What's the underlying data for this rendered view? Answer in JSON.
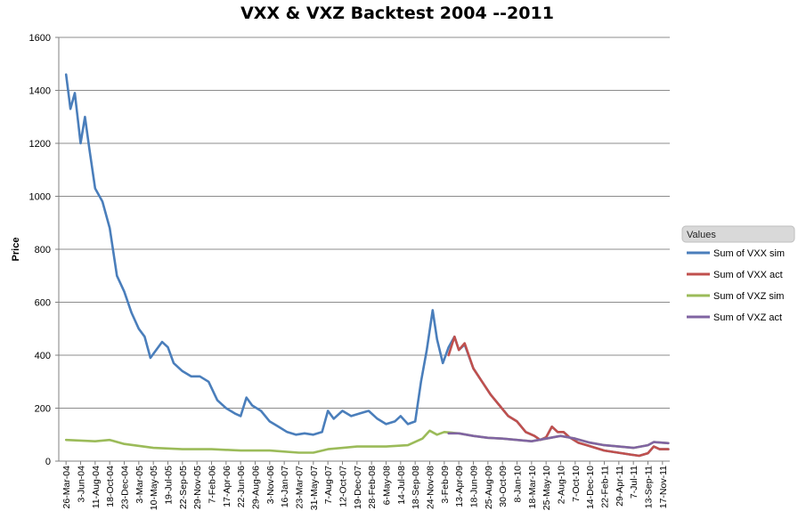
{
  "chart_data": {
    "type": "line",
    "title": "VXX & VXZ Backtest 2004 --2011",
    "xlabel": "",
    "ylabel": "Price",
    "ylim": [
      0,
      1600
    ],
    "yticks": [
      0,
      200,
      400,
      600,
      800,
      1000,
      1200,
      1400,
      1600
    ],
    "grid": true,
    "legend": {
      "title": "Values",
      "placement": "right"
    },
    "x_tick_labels": [
      "26-Mar-04",
      "3-Jun-04",
      "11-Aug-04",
      "18-Oct-04",
      "23-Dec-04",
      "3-Mar-05",
      "10-May-05",
      "19-Jul-05",
      "22-Sep-05",
      "29-Nov-05",
      "7-Feb-06",
      "17-Apr-06",
      "22-Jun-06",
      "29-Aug-06",
      "3-Nov-06",
      "16-Jan-07",
      "23-Mar-07",
      "31-May-07",
      "7-Aug-07",
      "12-Oct-07",
      "19-Dec-07",
      "28-Feb-08",
      "6-May-08",
      "14-Jul-08",
      "18-Sep-08",
      "24-Nov-08",
      "3-Feb-09",
      "13-Apr-09",
      "18-Jun-09",
      "25-Aug-09",
      "30-Oct-09",
      "8-Jan-10",
      "18-Mar-10",
      "25-May-10",
      "2-Aug-10",
      "7-Oct-10",
      "14-Dec-10",
      "22-Feb-11",
      "29-Apr-11",
      "7-Jul-11",
      "13-Sep-11",
      "17-Nov-11"
    ],
    "series": [
      {
        "name": "Sum of VXX sim",
        "color": "#4a7ebb",
        "points": [
          [
            0,
            1460
          ],
          [
            0.3,
            1330
          ],
          [
            0.6,
            1390
          ],
          [
            1.0,
            1200
          ],
          [
            1.3,
            1300
          ],
          [
            1.6,
            1180
          ],
          [
            2.0,
            1030
          ],
          [
            2.5,
            980
          ],
          [
            3.0,
            880
          ],
          [
            3.5,
            700
          ],
          [
            4.0,
            640
          ],
          [
            4.5,
            560
          ],
          [
            5.0,
            500
          ],
          [
            5.4,
            470
          ],
          [
            5.8,
            390
          ],
          [
            6.2,
            420
          ],
          [
            6.6,
            450
          ],
          [
            7.0,
            430
          ],
          [
            7.4,
            370
          ],
          [
            8.0,
            340
          ],
          [
            8.6,
            320
          ],
          [
            9.2,
            320
          ],
          [
            9.8,
            300
          ],
          [
            10.4,
            230
          ],
          [
            11.0,
            200
          ],
          [
            11.6,
            180
          ],
          [
            12.0,
            170
          ],
          [
            12.4,
            240
          ],
          [
            12.8,
            210
          ],
          [
            13.4,
            190
          ],
          [
            14.0,
            150
          ],
          [
            14.6,
            130
          ],
          [
            15.2,
            110
          ],
          [
            15.8,
            100
          ],
          [
            16.4,
            105
          ],
          [
            17.0,
            100
          ],
          [
            17.6,
            110
          ],
          [
            18.0,
            190
          ],
          [
            18.4,
            160
          ],
          [
            19.0,
            190
          ],
          [
            19.6,
            170
          ],
          [
            20.2,
            180
          ],
          [
            20.8,
            190
          ],
          [
            21.4,
            160
          ],
          [
            22.0,
            140
          ],
          [
            22.6,
            150
          ],
          [
            23.0,
            170
          ],
          [
            23.5,
            140
          ],
          [
            24.0,
            150
          ],
          [
            24.4,
            300
          ],
          [
            24.8,
            420
          ],
          [
            25.2,
            570
          ],
          [
            25.5,
            460
          ],
          [
            25.9,
            370
          ],
          [
            26.3,
            430
          ],
          [
            26.7,
            470
          ],
          [
            27.0,
            420
          ],
          [
            27.4,
            440
          ],
          [
            28.0,
            350
          ],
          [
            28.6,
            300
          ],
          [
            29.2,
            250
          ],
          [
            29.8,
            210
          ],
          [
            30.4,
            170
          ],
          [
            31.0,
            150
          ],
          [
            31.6,
            110
          ],
          [
            32.2,
            95
          ],
          [
            32.6,
            80
          ],
          [
            33.0,
            90
          ],
          [
            33.4,
            130
          ],
          [
            33.8,
            110
          ],
          [
            34.2,
            110
          ],
          [
            34.6,
            90
          ],
          [
            35.2,
            70
          ],
          [
            35.8,
            60
          ],
          [
            36.4,
            50
          ],
          [
            37.0,
            40
          ],
          [
            37.6,
            35
          ],
          [
            38.2,
            30
          ],
          [
            38.8,
            25
          ],
          [
            39.4,
            20
          ],
          [
            40.0,
            30
          ],
          [
            40.4,
            55
          ],
          [
            40.8,
            45
          ],
          [
            41.4,
            45
          ]
        ]
      },
      {
        "name": "Sum of VXX act",
        "color": "#c0504d",
        "points": [
          [
            26.3,
            400
          ],
          [
            26.7,
            470
          ],
          [
            27.0,
            420
          ],
          [
            27.4,
            445
          ],
          [
            28.0,
            350
          ],
          [
            28.6,
            300
          ],
          [
            29.2,
            250
          ],
          [
            29.8,
            210
          ],
          [
            30.4,
            170
          ],
          [
            31.0,
            150
          ],
          [
            31.6,
            110
          ],
          [
            32.2,
            95
          ],
          [
            32.6,
            80
          ],
          [
            33.0,
            90
          ],
          [
            33.4,
            130
          ],
          [
            33.8,
            110
          ],
          [
            34.2,
            110
          ],
          [
            34.6,
            90
          ],
          [
            35.2,
            70
          ],
          [
            35.8,
            60
          ],
          [
            36.4,
            50
          ],
          [
            37.0,
            40
          ],
          [
            37.6,
            35
          ],
          [
            38.2,
            30
          ],
          [
            38.8,
            25
          ],
          [
            39.4,
            20
          ],
          [
            40.0,
            30
          ],
          [
            40.4,
            55
          ],
          [
            40.8,
            45
          ],
          [
            41.4,
            45
          ]
        ]
      },
      {
        "name": "Sum of VXZ sim",
        "color": "#9bbb59",
        "points": [
          [
            0,
            80
          ],
          [
            2.0,
            75
          ],
          [
            3.0,
            80
          ],
          [
            4.0,
            65
          ],
          [
            6.0,
            50
          ],
          [
            8.0,
            45
          ],
          [
            10.0,
            45
          ],
          [
            12.0,
            40
          ],
          [
            14.0,
            40
          ],
          [
            16.0,
            32
          ],
          [
            17.0,
            32
          ],
          [
            18.0,
            45
          ],
          [
            20.0,
            55
          ],
          [
            22.0,
            55
          ],
          [
            23.5,
            60
          ],
          [
            24.5,
            85
          ],
          [
            25.0,
            115
          ],
          [
            25.5,
            100
          ],
          [
            26.0,
            110
          ],
          [
            27.0,
            105
          ],
          [
            28.0,
            95
          ],
          [
            29.0,
            88
          ],
          [
            30.0,
            85
          ],
          [
            31.0,
            80
          ],
          [
            32.0,
            75
          ],
          [
            33.0,
            85
          ],
          [
            34.0,
            95
          ],
          [
            35.0,
            85
          ],
          [
            36.0,
            70
          ],
          [
            37.0,
            60
          ],
          [
            38.0,
            55
          ],
          [
            39.0,
            50
          ],
          [
            40.0,
            60
          ],
          [
            40.4,
            72
          ],
          [
            41.4,
            68
          ]
        ]
      },
      {
        "name": "Sum of VXZ act",
        "color": "#8064a2",
        "points": [
          [
            26.3,
            105
          ],
          [
            27.0,
            105
          ],
          [
            28.0,
            95
          ],
          [
            29.0,
            88
          ],
          [
            30.0,
            85
          ],
          [
            31.0,
            80
          ],
          [
            32.0,
            75
          ],
          [
            33.0,
            85
          ],
          [
            34.0,
            95
          ],
          [
            35.0,
            85
          ],
          [
            36.0,
            70
          ],
          [
            37.0,
            60
          ],
          [
            38.0,
            55
          ],
          [
            39.0,
            50
          ],
          [
            40.0,
            60
          ],
          [
            40.4,
            72
          ],
          [
            41.4,
            68
          ]
        ]
      }
    ]
  }
}
